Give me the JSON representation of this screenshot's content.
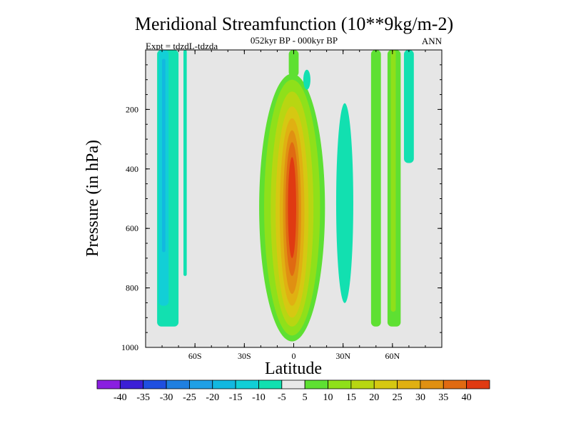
{
  "chart_data": {
    "type": "heatmap",
    "title": "Meridional Streamfunction (10**9kg/m-2)",
    "subtitle": "052kyr BP - 000kyr BP",
    "left_label": "Expt = tdzdL-tdzda",
    "right_label": "ANN",
    "xlabel": "Latitude",
    "ylabel": "Pressure (in hPa)",
    "xlim": [
      -90,
      90
    ],
    "ylim": [
      1000,
      0
    ],
    "x_ticks": [
      {
        "value": -60,
        "label": "60S"
      },
      {
        "value": -30,
        "label": "30S"
      },
      {
        "value": 0,
        "label": "0"
      },
      {
        "value": 30,
        "label": "30N"
      },
      {
        "value": 60,
        "label": "60N"
      }
    ],
    "y_ticks": [
      {
        "value": 200,
        "label": "200"
      },
      {
        "value": 400,
        "label": "400"
      },
      {
        "value": 600,
        "label": "600"
      },
      {
        "value": 800,
        "label": "800"
      },
      {
        "value": 1000,
        "label": "1000"
      }
    ],
    "background_level_color": "#e6e6e6",
    "colorbar": {
      "labels": [
        "-40",
        "-35",
        "-30",
        "-25",
        "-20",
        "-15",
        "-10",
        "-5",
        "5",
        "10",
        "15",
        "20",
        "25",
        "30",
        "35",
        "40"
      ],
      "colors": [
        "#8a1fe0",
        "#3b1fd6",
        "#1f4fe0",
        "#1f7fe0",
        "#1fa0e6",
        "#12b8e0",
        "#12cfd6",
        "#12e0b0",
        "#e8e8e8",
        "#5ee032",
        "#8fe01a",
        "#b8d612",
        "#d6c812",
        "#e0b012",
        "#e09012",
        "#e06a12",
        "#e03a12"
      ]
    },
    "features": [
      {
        "name": "equatorial positive cell",
        "lat_center": 0,
        "p_top": 80,
        "p_bottom": 980,
        "peak_value": 40,
        "peak_lat": -1,
        "peak_p": 480
      },
      {
        "name": "southern high-latitude negative cell",
        "lat_range": [
          -83,
          -70
        ],
        "p_top": 0,
        "p_bottom": 930,
        "min_value": -15
      },
      {
        "name": "southern mid-latitude negative strip",
        "lat_range": [
          -67,
          -65
        ],
        "p_top": 0,
        "p_bottom": 760,
        "min_value": -5
      },
      {
        "name": "northern subtropical negative cell",
        "lat_range": [
          26,
          36
        ],
        "p_top": 230,
        "p_bottom": 800,
        "min_value": -5
      },
      {
        "name": "northern mid-latitude positive strips",
        "lat_range": [
          47,
          65
        ],
        "p_top": 0,
        "p_bottom": 930,
        "max_value": 10
      },
      {
        "name": "northern high-latitude negative strip",
        "lat_range": [
          67,
          73
        ],
        "p_top": 0,
        "p_bottom": 380,
        "min_value": -5
      }
    ]
  }
}
